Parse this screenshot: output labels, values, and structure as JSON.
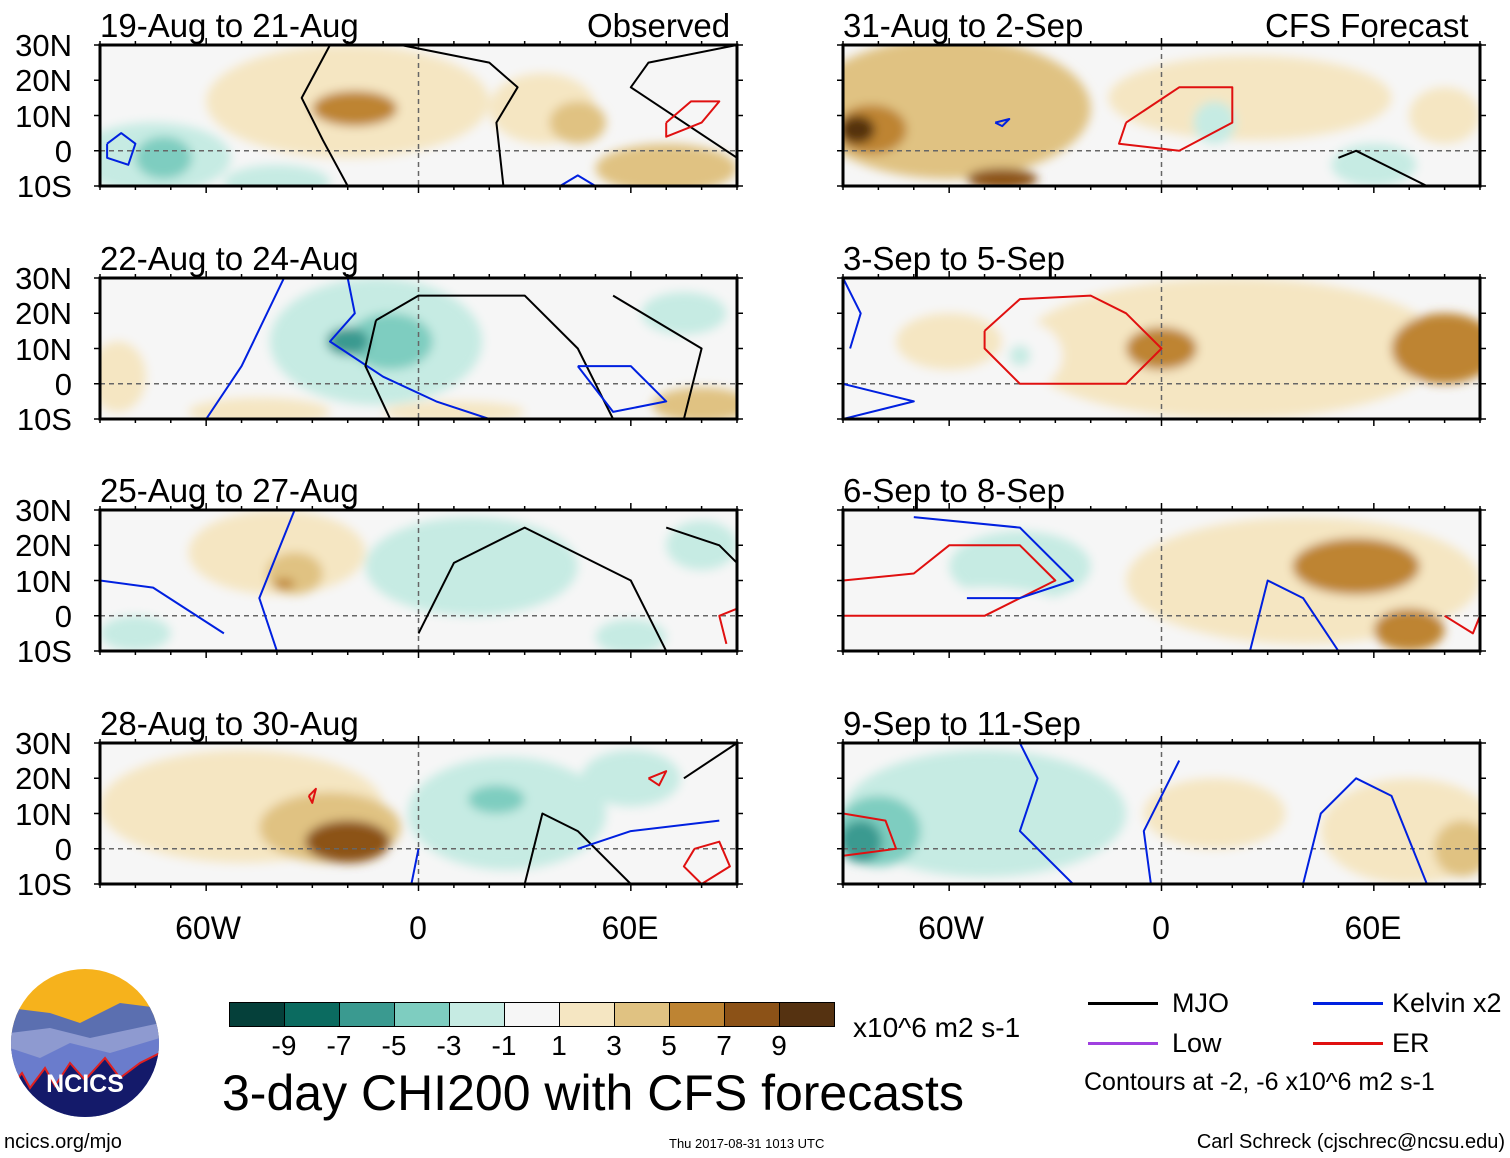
{
  "colors": [
    "#05403a",
    "#0b6b60",
    "#3a9a90",
    "#7ecdc0",
    "#c6ebe3",
    "#f6f6f6",
    "#f5e6c2",
    "#e0c282",
    "#be8433",
    "#8c5217",
    "#553211"
  ],
  "contour_colors": {
    "MJO": "#000000",
    "Kelvin": "#0020e0",
    "Low": "#a040e0",
    "ER": "#e01010"
  },
  "left_header": "Observed",
  "right_header": "CFS Forecast",
  "lat_labels": [
    "30N",
    "20N",
    "10N",
    "0",
    "10S"
  ],
  "lon_labels": [
    "60W",
    "0",
    "60E"
  ],
  "panels": [
    {
      "title": "19-Aug to 21-Aug",
      "col": 0,
      "row": 0,
      "blobs": [
        [
          -20,
          14,
          40,
          16,
          2
        ],
        [
          -18,
          12,
          12,
          5,
          5
        ],
        [
          35,
          12,
          15,
          10,
          2
        ],
        [
          45,
          8,
          8,
          6,
          4
        ],
        [
          70,
          -5,
          20,
          7,
          3
        ],
        [
          -75,
          -2,
          22,
          10,
          -2
        ],
        [
          -72,
          -2,
          8,
          6,
          -4
        ],
        [
          -40,
          -9,
          15,
          5,
          -2
        ]
      ],
      "contours": [
        [
          "MJO",
          [
            [
              -25,
              30
            ],
            [
              -33,
              15
            ],
            [
              -27,
              3
            ],
            [
              -20,
              -10
            ]
          ]
        ],
        [
          "MJO",
          [
            [
              -5,
              30
            ],
            [
              20,
              25
            ],
            [
              28,
              18
            ],
            [
              22,
              8
            ],
            [
              24,
              -10
            ]
          ]
        ],
        [
          "MJO",
          [
            [
              90,
              30
            ],
            [
              65,
              25
            ],
            [
              60,
              18
            ],
            [
              75,
              8
            ],
            [
              90,
              -2
            ]
          ]
        ],
        [
          "ER",
          [
            [
              70,
              8
            ],
            [
              77,
              14
            ],
            [
              85,
              14
            ],
            [
              80,
              8
            ],
            [
              70,
              4
            ],
            [
              70,
              8
            ]
          ]
        ],
        [
          "Kelvin",
          [
            [
              -88,
              2
            ],
            [
              -84,
              5
            ],
            [
              -80,
              2
            ],
            [
              -82,
              -4
            ],
            [
              -88,
              -2
            ],
            [
              -88,
              2
            ]
          ]
        ],
        [
          "Kelvin",
          [
            [
              40,
              -10
            ],
            [
              45,
              -7
            ],
            [
              50,
              -10
            ]
          ]
        ]
      ]
    },
    {
      "title": "22-Aug to 24-Aug",
      "col": 0,
      "row": 1,
      "blobs": [
        [
          -12,
          12,
          30,
          18,
          -2
        ],
        [
          -8,
          12,
          12,
          8,
          -5
        ],
        [
          -20,
          12,
          6,
          4,
          -7
        ],
        [
          -85,
          2,
          8,
          10,
          2
        ],
        [
          -45,
          -8,
          20,
          4,
          2
        ],
        [
          80,
          -6,
          14,
          5,
          3
        ],
        [
          10,
          -8,
          20,
          3,
          2
        ],
        [
          75,
          20,
          12,
          6,
          -2
        ]
      ],
      "contours": [
        [
          "Kelvin",
          [
            [
              -38,
              30
            ],
            [
              -50,
              5
            ],
            [
              -60,
              -10
            ]
          ]
        ],
        [
          "Kelvin",
          [
            [
              -20,
              30
            ],
            [
              -18,
              20
            ],
            [
              -25,
              12
            ],
            [
              -10,
              2
            ],
            [
              5,
              -5
            ],
            [
              20,
              -10
            ]
          ]
        ],
        [
          "MJO",
          [
            [
              -12,
              18
            ],
            [
              0,
              25
            ],
            [
              30,
              25
            ],
            [
              45,
              10
            ],
            [
              55,
              -10
            ]
          ]
        ],
        [
          "MJO",
          [
            [
              -12,
              18
            ],
            [
              -15,
              5
            ],
            [
              -8,
              -10
            ]
          ]
        ],
        [
          "MJO",
          [
            [
              55,
              25
            ],
            [
              80,
              10
            ],
            [
              75,
              -10
            ]
          ]
        ],
        [
          "Kelvin",
          [
            [
              45,
              5
            ],
            [
              60,
              5
            ],
            [
              70,
              -5
            ],
            [
              55,
              -8
            ],
            [
              45,
              5
            ]
          ]
        ]
      ]
    },
    {
      "title": "25-Aug to 27-Aug",
      "col": 0,
      "row": 2,
      "blobs": [
        [
          -40,
          18,
          25,
          12,
          2
        ],
        [
          -35,
          12,
          8,
          6,
          3
        ],
        [
          -38,
          9,
          3,
          1.5,
          5
        ],
        [
          15,
          14,
          30,
          14,
          -2
        ],
        [
          80,
          20,
          10,
          7,
          -3
        ],
        [
          -80,
          -5,
          10,
          5,
          -2
        ],
        [
          60,
          -6,
          10,
          5,
          -2
        ]
      ],
      "contours": [
        [
          "Kelvin",
          [
            [
              -40,
              -10
            ],
            [
              -45,
              5
            ],
            [
              -35,
              30
            ]
          ]
        ],
        [
          "Kelvin",
          [
            [
              -90,
              10
            ],
            [
              -75,
              8
            ],
            [
              -55,
              -5
            ]
          ]
        ],
        [
          "MJO",
          [
            [
              0,
              -5
            ],
            [
              10,
              15
            ],
            [
              30,
              25
            ],
            [
              60,
              10
            ],
            [
              70,
              -10
            ]
          ]
        ],
        [
          "MJO",
          [
            [
              70,
              25
            ],
            [
              85,
              20
            ],
            [
              90,
              15
            ]
          ]
        ],
        [
          "ER",
          [
            [
              90,
              2
            ],
            [
              85,
              0
            ],
            [
              87,
              -8
            ]
          ]
        ]
      ]
    },
    {
      "title": "28-Aug to 30-Aug",
      "col": 0,
      "row": 3,
      "blobs": [
        [
          -50,
          12,
          40,
          16,
          2
        ],
        [
          -25,
          6,
          20,
          10,
          4
        ],
        [
          -20,
          2,
          12,
          6,
          8
        ],
        [
          25,
          10,
          28,
          16,
          -2
        ],
        [
          22,
          14,
          8,
          4,
          -5
        ],
        [
          60,
          20,
          14,
          8,
          -2
        ]
      ],
      "contours": [
        [
          "ER",
          [
            [
              -31,
              15
            ],
            [
              -29,
              17
            ],
            [
              -30,
              13
            ],
            [
              -31,
              15
            ]
          ]
        ],
        [
          "Kelvin",
          [
            [
              -2,
              -10
            ],
            [
              0,
              0
            ]
          ]
        ],
        [
          "MJO",
          [
            [
              30,
              -10
            ],
            [
              35,
              10
            ],
            [
              45,
              5
            ],
            [
              60,
              -10
            ]
          ]
        ],
        [
          "Kelvin",
          [
            [
              45,
              0
            ],
            [
              60,
              5
            ],
            [
              85,
              8
            ]
          ]
        ],
        [
          "ER",
          [
            [
              78,
              0
            ],
            [
              85,
              2
            ],
            [
              88,
              -5
            ],
            [
              80,
              -10
            ],
            [
              75,
              -5
            ],
            [
              78,
              0
            ]
          ]
        ],
        [
          "ER",
          [
            [
              65,
              20
            ],
            [
              70,
              22
            ],
            [
              68,
              18
            ],
            [
              65,
              20
            ]
          ]
        ],
        [
          "MJO",
          [
            [
              75,
              20
            ],
            [
              90,
              30
            ]
          ]
        ]
      ]
    },
    {
      "title": "31-Aug to 2-Sep",
      "col": 1,
      "row": 0,
      "blobs": [
        [
          -60,
          12,
          40,
          20,
          4
        ],
        [
          -82,
          6,
          10,
          7,
          6
        ],
        [
          -86,
          6,
          5,
          4,
          9
        ],
        [
          -45,
          -8,
          10,
          3,
          7
        ],
        [
          25,
          15,
          40,
          12,
          2
        ],
        [
          15,
          8,
          6,
          6,
          -2
        ],
        [
          60,
          -4,
          12,
          6,
          -2
        ],
        [
          80,
          10,
          10,
          8,
          2
        ]
      ],
      "contours": [
        [
          "Kelvin",
          [
            [
              -47,
              8
            ],
            [
              -43,
              9
            ],
            [
              -45,
              7
            ],
            [
              -47,
              8
            ]
          ]
        ],
        [
          "ER",
          [
            [
              -10,
              8
            ],
            [
              5,
              18
            ],
            [
              20,
              18
            ],
            [
              20,
              8
            ],
            [
              5,
              0
            ],
            [
              -12,
              2
            ],
            [
              -10,
              8
            ]
          ]
        ],
        [
          "MJO",
          [
            [
              50,
              -2
            ],
            [
              55,
              0
            ],
            [
              65,
              -5
            ],
            [
              75,
              -10
            ]
          ]
        ]
      ]
    },
    {
      "title": "3-Sep to 5-Sep",
      "col": 1,
      "row": 1,
      "blobs": [
        [
          20,
          10,
          60,
          20,
          2
        ],
        [
          0,
          10,
          10,
          6,
          5
        ],
        [
          80,
          10,
          15,
          10,
          5
        ],
        [
          -40,
          8,
          12,
          10,
          -1
        ],
        [
          -40,
          8,
          3,
          3,
          -3
        ],
        [
          -60,
          12,
          15,
          8,
          2
        ]
      ],
      "contours": [
        [
          "ER",
          [
            [
              -50,
              15
            ],
            [
              -40,
              24
            ],
            [
              -20,
              25
            ],
            [
              -10,
              20
            ],
            [
              0,
              10
            ],
            [
              -10,
              0
            ],
            [
              -40,
              0
            ],
            [
              -50,
              10
            ],
            [
              -50,
              15
            ]
          ]
        ],
        [
          "Kelvin",
          [
            [
              -90,
              30
            ],
            [
              -85,
              20
            ],
            [
              -88,
              10
            ]
          ]
        ],
        [
          "Kelvin",
          [
            [
              -90,
              0
            ],
            [
              -70,
              -5
            ],
            [
              -90,
              -10
            ]
          ]
        ]
      ]
    },
    {
      "title": "6-Sep to 8-Sep",
      "col": 1,
      "row": 2,
      "blobs": [
        [
          40,
          10,
          50,
          18,
          2
        ],
        [
          55,
          14,
          18,
          8,
          5
        ],
        [
          70,
          -4,
          10,
          6,
          5
        ],
        [
          -40,
          14,
          20,
          10,
          -2
        ],
        [
          -50,
          0,
          25,
          8,
          -1
        ]
      ],
      "contours": [
        [
          "ER",
          [
            [
              -90,
              10
            ],
            [
              -70,
              12
            ],
            [
              -60,
              20
            ],
            [
              -40,
              20
            ],
            [
              -30,
              10
            ],
            [
              -50,
              0
            ],
            [
              -90,
              0
            ]
          ]
        ],
        [
          "Kelvin",
          [
            [
              -70,
              28
            ],
            [
              -40,
              25
            ],
            [
              -25,
              10
            ],
            [
              -40,
              5
            ],
            [
              -55,
              5
            ]
          ]
        ],
        [
          "Kelvin",
          [
            [
              25,
              -10
            ],
            [
              30,
              10
            ],
            [
              40,
              5
            ],
            [
              50,
              -10
            ]
          ]
        ],
        [
          "ER",
          [
            [
              80,
              0
            ],
            [
              88,
              -5
            ],
            [
              90,
              0
            ]
          ]
        ]
      ]
    },
    {
      "title": "9-Sep to 11-Sep",
      "col": 1,
      "row": 3,
      "blobs": [
        [
          -50,
          10,
          40,
          18,
          -2
        ],
        [
          -80,
          5,
          12,
          10,
          -5
        ],
        [
          -85,
          2,
          6,
          6,
          -7
        ],
        [
          70,
          5,
          25,
          15,
          2
        ],
        [
          85,
          0,
          8,
          8,
          4
        ],
        [
          15,
          10,
          20,
          10,
          2
        ]
      ],
      "contours": [
        [
          "Kelvin",
          [
            [
              -40,
              30
            ],
            [
              -35,
              20
            ],
            [
              -40,
              5
            ],
            [
              -25,
              -10
            ]
          ]
        ],
        [
          "ER",
          [
            [
              -90,
              10
            ],
            [
              -78,
              8
            ],
            [
              -75,
              0
            ],
            [
              -90,
              -2
            ]
          ]
        ],
        [
          "Kelvin",
          [
            [
              -3,
              -10
            ],
            [
              -5,
              5
            ],
            [
              5,
              25
            ]
          ]
        ],
        [
          "Kelvin",
          [
            [
              40,
              -10
            ],
            [
              45,
              10
            ],
            [
              55,
              20
            ],
            [
              65,
              15
            ],
            [
              75,
              -10
            ]
          ]
        ]
      ]
    }
  ],
  "colorbar": {
    "ticks": [
      "-9",
      "-7",
      "-5",
      "-3",
      "-1",
      "1",
      "3",
      "5",
      "7",
      "9"
    ],
    "units": "x10^6 m2 s-1"
  },
  "main_title": "3-day CHI200 with CFS forecasts",
  "legend": {
    "mjo": "MJO",
    "kelvin": "Kelvin x2",
    "low": "Low",
    "er": "ER",
    "contours_note": "Contours at -2, -6 x10^6 m2 s-1"
  },
  "logo_text": "NCICS",
  "footer": {
    "url": "ncics.org/mjo",
    "timestamp": "Thu 2017-08-31 1013 UTC",
    "author": "Carl Schreck (cjschrec@ncsu.edu)"
  }
}
